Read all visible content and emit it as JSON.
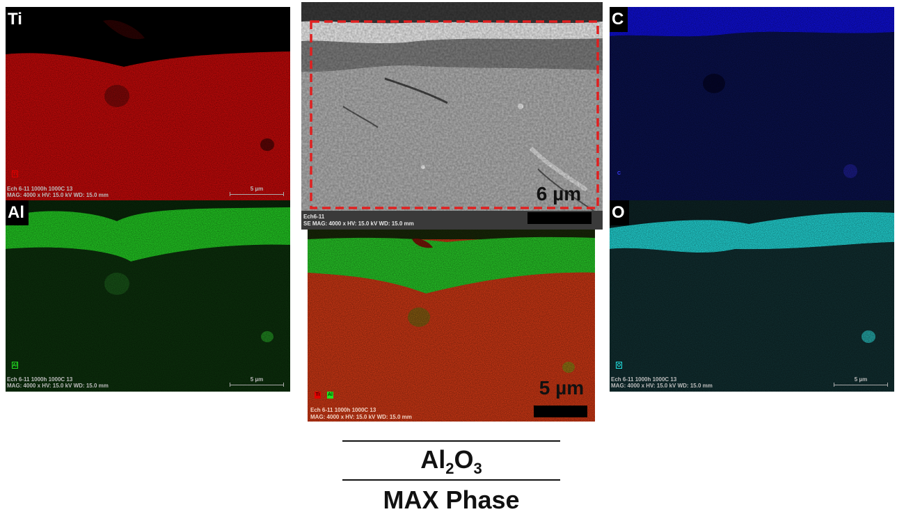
{
  "panels": {
    "ti": {
      "tag": "Ti",
      "chip": "Ti",
      "caption1": "Ech 6-11 1000h 1000C 13",
      "caption2": "MAG: 4000 x  HV: 15.0 kV  WD: 15.0 mm",
      "scale": "5 µm",
      "color": "#e00000"
    },
    "c": {
      "tag": "C",
      "chip": "C",
      "color": "#1818c8"
    },
    "al": {
      "tag": "Al",
      "chip": "Al",
      "caption1": "Ech 6-11 1000h 1000C 13",
      "caption2": "MAG: 4000 x  HV: 15.0 kV  WD: 15.0 mm",
      "scale": "5 µm",
      "color": "#22e022"
    },
    "o": {
      "tag": "O",
      "chip": "O",
      "caption1": "Ech 6-11 1000h 1000C 13",
      "caption2": "MAG: 4000 x  HV: 15.0 kV  WD: 15.0 mm",
      "scale": "5 µm",
      "color": "#22e6e6"
    },
    "sem": {
      "scale": "6 µm",
      "caption1": "Ech6-11",
      "caption2": "SE  MAG: 4000 x  HV: 15.0 kV  WD: 15.0 mm",
      "frame_color": "#e02020"
    },
    "overlay": {
      "chip1": "Ti",
      "chip2": "Al",
      "scale": "5 µm",
      "caption1": "Ech 6-11 1000h 1000C 13",
      "caption2": "MAG: 4000 x  HV: 15.0 kV  WD: 15.0 mm"
    }
  },
  "legend": {
    "top_main": "Al",
    "top_sub1": "2",
    "top_mid": "O",
    "top_sub2": "3",
    "bottom": "MAX Phase"
  }
}
